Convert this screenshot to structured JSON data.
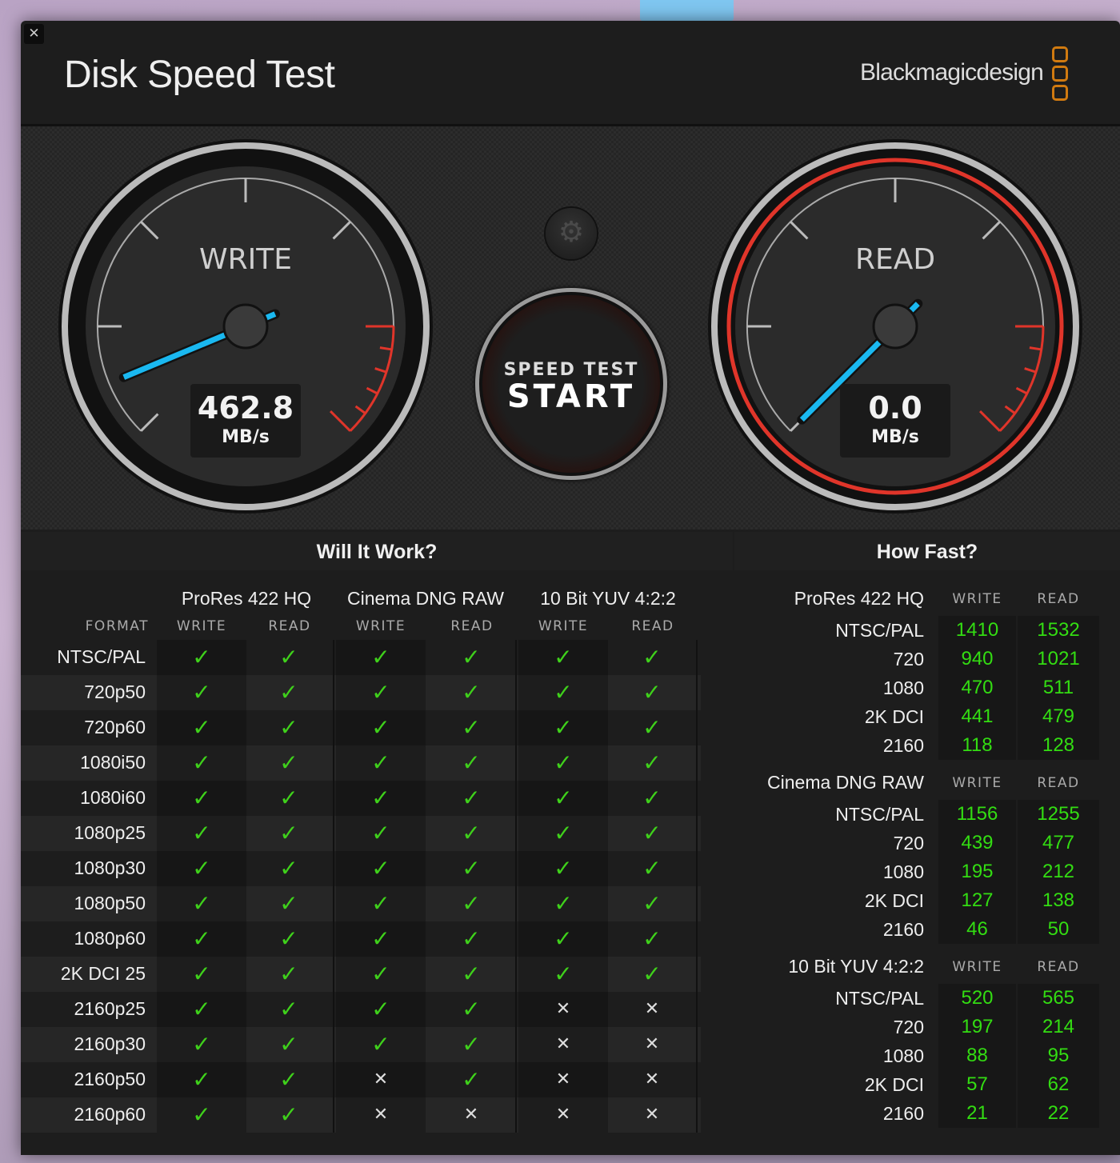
{
  "window": {
    "title": "Disk Speed Test",
    "brand": "Blackmagicdesign",
    "close_icon": "close-icon",
    "brand_color": "#d07a10"
  },
  "gauges": {
    "write": {
      "label": "WRITE",
      "value": "462.8",
      "unit": "MB/s"
    },
    "read": {
      "label": "READ",
      "value": "0.0",
      "unit": "MB/s"
    },
    "needle_color": "#1ab8f0",
    "redline_color": "#e0352a"
  },
  "controls": {
    "settings_icon": "gear-icon",
    "start_line1": "SPEED TEST",
    "start_line2": "START"
  },
  "will_it_work": {
    "title": "Will It Work?",
    "format_header": "FORMAT",
    "codecs": [
      "ProRes 422 HQ",
      "Cinema DNG RAW",
      "10 Bit YUV 4:2:2"
    ],
    "sub_headers": [
      "WRITE",
      "READ",
      "WRITE",
      "READ",
      "WRITE",
      "READ"
    ],
    "check_symbol": "✓",
    "cross_symbol": "✕",
    "rows": [
      {
        "format": "NTSC/PAL",
        "ok": [
          true,
          true,
          true,
          true,
          true,
          true
        ]
      },
      {
        "format": "720p50",
        "ok": [
          true,
          true,
          true,
          true,
          true,
          true
        ]
      },
      {
        "format": "720p60",
        "ok": [
          true,
          true,
          true,
          true,
          true,
          true
        ]
      },
      {
        "format": "1080i50",
        "ok": [
          true,
          true,
          true,
          true,
          true,
          true
        ]
      },
      {
        "format": "1080i60",
        "ok": [
          true,
          true,
          true,
          true,
          true,
          true
        ]
      },
      {
        "format": "1080p25",
        "ok": [
          true,
          true,
          true,
          true,
          true,
          true
        ]
      },
      {
        "format": "1080p30",
        "ok": [
          true,
          true,
          true,
          true,
          true,
          true
        ]
      },
      {
        "format": "1080p50",
        "ok": [
          true,
          true,
          true,
          true,
          true,
          true
        ]
      },
      {
        "format": "1080p60",
        "ok": [
          true,
          true,
          true,
          true,
          true,
          true
        ]
      },
      {
        "format": "2K DCI 25",
        "ok": [
          true,
          true,
          true,
          true,
          true,
          true
        ]
      },
      {
        "format": "2160p25",
        "ok": [
          true,
          true,
          true,
          true,
          false,
          false
        ]
      },
      {
        "format": "2160p30",
        "ok": [
          true,
          true,
          true,
          true,
          false,
          false
        ]
      },
      {
        "format": "2160p50",
        "ok": [
          true,
          true,
          false,
          true,
          false,
          false
        ]
      },
      {
        "format": "2160p60",
        "ok": [
          true,
          true,
          false,
          false,
          false,
          false
        ]
      }
    ]
  },
  "how_fast": {
    "title": "How Fast?",
    "groups": [
      {
        "codec": "ProRes 422 HQ",
        "write_label": "WRITE",
        "read_label": "READ",
        "rows": [
          {
            "format": "NTSC/PAL",
            "write": "1410",
            "read": "1532"
          },
          {
            "format": "720",
            "write": "940",
            "read": "1021"
          },
          {
            "format": "1080",
            "write": "470",
            "read": "511"
          },
          {
            "format": "2K DCI",
            "write": "441",
            "read": "479"
          },
          {
            "format": "2160",
            "write": "118",
            "read": "128"
          }
        ]
      },
      {
        "codec": "Cinema DNG RAW",
        "write_label": "WRITE",
        "read_label": "READ",
        "rows": [
          {
            "format": "NTSC/PAL",
            "write": "1156",
            "read": "1255"
          },
          {
            "format": "720",
            "write": "439",
            "read": "477"
          },
          {
            "format": "1080",
            "write": "195",
            "read": "212"
          },
          {
            "format": "2K DCI",
            "write": "127",
            "read": "138"
          },
          {
            "format": "2160",
            "write": "46",
            "read": "50"
          }
        ]
      },
      {
        "codec": "10 Bit YUV 4:2:2",
        "write_label": "WRITE",
        "read_label": "READ",
        "rows": [
          {
            "format": "NTSC/PAL",
            "write": "520",
            "read": "565"
          },
          {
            "format": "720",
            "write": "197",
            "read": "214"
          },
          {
            "format": "1080",
            "write": "88",
            "read": "95"
          },
          {
            "format": "2K DCI",
            "write": "57",
            "read": "62"
          },
          {
            "format": "2160",
            "write": "21",
            "read": "22"
          }
        ]
      }
    ]
  }
}
